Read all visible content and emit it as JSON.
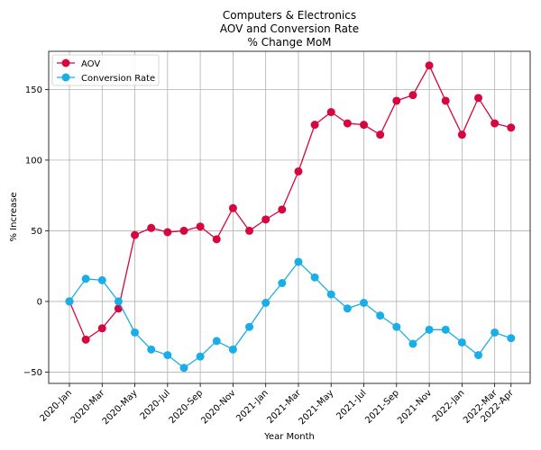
{
  "chart_data": {
    "type": "line",
    "title_lines": [
      "Computers & Electronics",
      "AOV and Conversion Rate",
      "% Change MoM"
    ],
    "xlabel": "Year Month",
    "ylabel": "% Increase",
    "categories": [
      "2020-Jan",
      "2020-Feb",
      "2020-Mar",
      "2020-Apr",
      "2020-May",
      "2020-Jun",
      "2020-Jul",
      "2020-Aug",
      "2020-Sep",
      "2020-Oct",
      "2020-Nov",
      "2020-Dec",
      "2021-Jan",
      "2021-Feb",
      "2021-Mar",
      "2021-Apr",
      "2021-May",
      "2021-Jun",
      "2021-Jul",
      "2021-Aug",
      "2021-Sep",
      "2021-Oct",
      "2021-Nov",
      "2021-Dec",
      "2022-Jan",
      "2022-Feb",
      "2022-Mar",
      "2022-Apr"
    ],
    "x_tick_labels": [
      "2020-Jan",
      "2020-Mar",
      "2020-May",
      "2020-Jul",
      "2020-Sep",
      "2020-Nov",
      "2021-Jan",
      "2021-Mar",
      "2021-May",
      "2021-Jul",
      "2021-Sep",
      "2021-Nov",
      "2022-Jan",
      "2022-Mar",
      "2022-Apr"
    ],
    "y_ticks": [
      -50,
      0,
      50,
      100,
      150
    ],
    "ylim": [
      -58,
      177
    ],
    "grid": true,
    "legend_position": "upper-left",
    "series": [
      {
        "name": "AOV",
        "color": "#d6063f",
        "values": [
          0,
          -27,
          -19,
          -5,
          47,
          52,
          49,
          50,
          53,
          44,
          66,
          50,
          58,
          65,
          92,
          125,
          134,
          126,
          125,
          118,
          142,
          146,
          167,
          142,
          118,
          144,
          126,
          123
        ]
      },
      {
        "name": "Conversion Rate",
        "color": "#1aaee8",
        "values": [
          0,
          16,
          15,
          0,
          -22,
          -34,
          -38,
          -47,
          -39,
          -28,
          -34,
          -18,
          -1,
          13,
          28,
          17,
          5,
          -5,
          -1,
          -10,
          -18,
          -30,
          -20,
          -20,
          -29,
          -38,
          -22,
          -26
        ]
      }
    ]
  }
}
